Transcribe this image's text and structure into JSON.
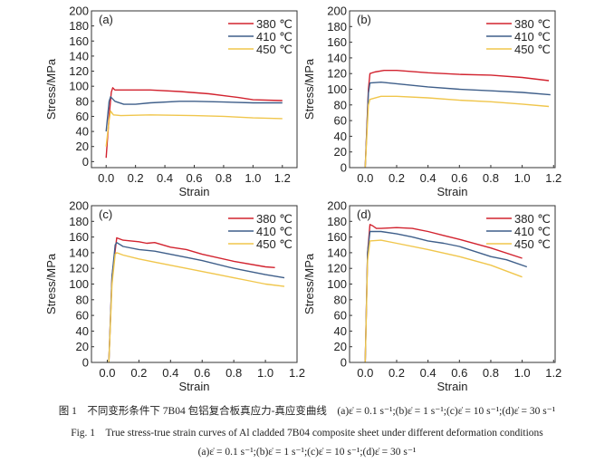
{
  "colors": {
    "380": "#d2232f",
    "410": "#3f5f8a",
    "450": "#f0c64c",
    "axis": "#333333"
  },
  "chart_data": [
    {
      "type": "line",
      "panel_label": "(a)",
      "xlabel": "Strain",
      "ylabel": "Stress/MPa",
      "xlim": [
        -0.1,
        1.3
      ],
      "ylim": [
        -8,
        200
      ],
      "xticks": [
        "0.0",
        "0.2",
        "0.4",
        "0.6",
        "0.8",
        "1.0",
        "1.2"
      ],
      "yticks": [
        "0",
        "20",
        "40",
        "60",
        "80",
        "100",
        "120",
        "140",
        "160",
        "180",
        "200"
      ],
      "legend_position": "top-right",
      "series": [
        {
          "name": "380 ℃",
          "x": [
            0,
            0.02,
            0.035,
            0.045,
            0.06,
            0.1,
            0.3,
            0.5,
            0.7,
            0.9,
            1.0,
            1.2
          ],
          "y": [
            5,
            60,
            92,
            98,
            95,
            95,
            95,
            93,
            90,
            85,
            82,
            81
          ]
        },
        {
          "name": "410 ℃",
          "x": [
            0,
            0.02,
            0.03,
            0.06,
            0.12,
            0.2,
            0.3,
            0.5,
            0.6,
            0.8,
            1.0,
            1.2
          ],
          "y": [
            40,
            80,
            86,
            80,
            76,
            76,
            78,
            80,
            80,
            79,
            78,
            78
          ]
        },
        {
          "name": "450 ℃",
          "x": [
            0,
            0.02,
            0.03,
            0.05,
            0.1,
            0.3,
            0.6,
            0.8,
            1.0,
            1.2
          ],
          "y": [
            20,
            55,
            67,
            62,
            61,
            62,
            61,
            60,
            58,
            57
          ]
        }
      ]
    },
    {
      "type": "line",
      "panel_label": "(b)",
      "xlabel": "Strain",
      "ylabel": "Stress/MPa",
      "xlim": [
        -0.1,
        1.21
      ],
      "ylim": [
        0,
        200
      ],
      "xticks": [
        "0.0",
        "0.2",
        "0.4",
        "0.6",
        "0.8",
        "1.0",
        "1.2"
      ],
      "yticks": [
        "0",
        "20",
        "40",
        "60",
        "80",
        "100",
        "120",
        "140",
        "160",
        "180",
        "200"
      ],
      "legend_position": "top-right",
      "series": [
        {
          "name": "380 ℃",
          "x": [
            0,
            0.02,
            0.03,
            0.06,
            0.12,
            0.2,
            0.4,
            0.6,
            0.8,
            1.0,
            1.17
          ],
          "y": [
            0,
            100,
            120,
            122,
            124,
            124,
            121,
            119,
            118,
            115,
            111
          ]
        },
        {
          "name": "410 ℃",
          "x": [
            0,
            0.02,
            0.03,
            0.1,
            0.2,
            0.4,
            0.6,
            0.8,
            1.0,
            1.18
          ],
          "y": [
            0,
            95,
            108,
            109,
            107,
            103,
            100,
            98,
            96,
            93
          ]
        },
        {
          "name": "450 ℃",
          "x": [
            0,
            0.02,
            0.03,
            0.1,
            0.2,
            0.4,
            0.6,
            0.8,
            1.0,
            1.17
          ],
          "y": [
            0,
            80,
            87,
            91,
            91,
            89,
            86,
            84,
            81,
            78
          ]
        }
      ]
    },
    {
      "type": "line",
      "panel_label": "(c)",
      "xlabel": "Strain",
      "ylabel": "Stress/MPa",
      "xlim": [
        -0.1,
        1.2
      ],
      "ylim": [
        0,
        200
      ],
      "xticks": [
        "0.0",
        "0.2",
        "0.4",
        "0.6",
        "0.8",
        "1.0",
        "1.2"
      ],
      "yticks": [
        "0",
        "20",
        "40",
        "60",
        "80",
        "100",
        "120",
        "140",
        "160",
        "180",
        "200"
      ],
      "legend_position": "top-right",
      "series": [
        {
          "name": "380 ℃",
          "x": [
            0.01,
            0.03,
            0.06,
            0.1,
            0.2,
            0.25,
            0.3,
            0.4,
            0.5,
            0.6,
            0.8,
            1.0,
            1.06
          ],
          "y": [
            0,
            110,
            159,
            156,
            154,
            152,
            153,
            147,
            144,
            138,
            129,
            122,
            121
          ]
        },
        {
          "name": "410 ℃",
          "x": [
            0.01,
            0.03,
            0.05,
            0.06,
            0.1,
            0.2,
            0.3,
            0.5,
            0.6,
            0.8,
            1.0,
            1.12
          ],
          "y": [
            0,
            110,
            150,
            153,
            148,
            144,
            142,
            134,
            130,
            120,
            112,
            108
          ]
        },
        {
          "name": "450 ℃",
          "x": [
            0.01,
            0.03,
            0.05,
            0.06,
            0.1,
            0.2,
            0.3,
            0.5,
            0.7,
            0.9,
            1.0,
            1.12
          ],
          "y": [
            0,
            100,
            138,
            140,
            137,
            132,
            128,
            120,
            112,
            104,
            100,
            97
          ]
        }
      ]
    },
    {
      "type": "line",
      "panel_label": "(d)",
      "xlabel": "Strain",
      "ylabel": "Stress/MPa",
      "xlim": [
        -0.1,
        1.21
      ],
      "ylim": [
        0,
        200
      ],
      "xticks": [
        "0.0",
        "0.2",
        "0.4",
        "0.6",
        "0.8",
        "1.0",
        "1.2"
      ],
      "yticks": [
        "0",
        "20",
        "40",
        "60",
        "80",
        "100",
        "120",
        "140",
        "160",
        "180",
        "200"
      ],
      "legend_position": "top-right",
      "series": [
        {
          "name": "380 ℃",
          "x": [
            0,
            0.015,
            0.03,
            0.05,
            0.07,
            0.1,
            0.2,
            0.3,
            0.4,
            0.5,
            0.6,
            0.8,
            1.0
          ],
          "y": [
            0,
            140,
            176,
            174,
            171,
            171,
            172,
            171,
            167,
            162,
            157,
            146,
            133
          ]
        },
        {
          "name": "410 ℃",
          "x": [
            0,
            0.015,
            0.03,
            0.1,
            0.2,
            0.3,
            0.4,
            0.5,
            0.6,
            0.8,
            0.9,
            1.03
          ],
          "y": [
            0,
            140,
            167,
            167,
            164,
            160,
            155,
            152,
            148,
            135,
            131,
            122
          ]
        },
        {
          "name": "450 ℃",
          "x": [
            0,
            0.015,
            0.03,
            0.1,
            0.2,
            0.4,
            0.6,
            0.8,
            1.0
          ],
          "y": [
            0,
            130,
            155,
            156,
            152,
            144,
            135,
            124,
            109
          ]
        }
      ]
    }
  ],
  "caption": {
    "line1": "图 1　不同变形条件下 7B04 包铝复合板真应力-真应变曲线　(a)ε̇ = 0.1 s⁻¹;(b)ε̇ = 1 s⁻¹;(c)ε̇ = 10 s⁻¹;(d)ε̇ = 30 s⁻¹",
    "line2": "Fig. 1　True stress-true strain curves of Al cladded 7B04 composite sheet under different deformation conditions",
    "line3": "(a)ε̇ = 0.1 s⁻¹;(b)ε̇ = 1 s⁻¹;(c)ε̇ = 10 s⁻¹;(d)ε̇ = 30 s⁻¹"
  }
}
